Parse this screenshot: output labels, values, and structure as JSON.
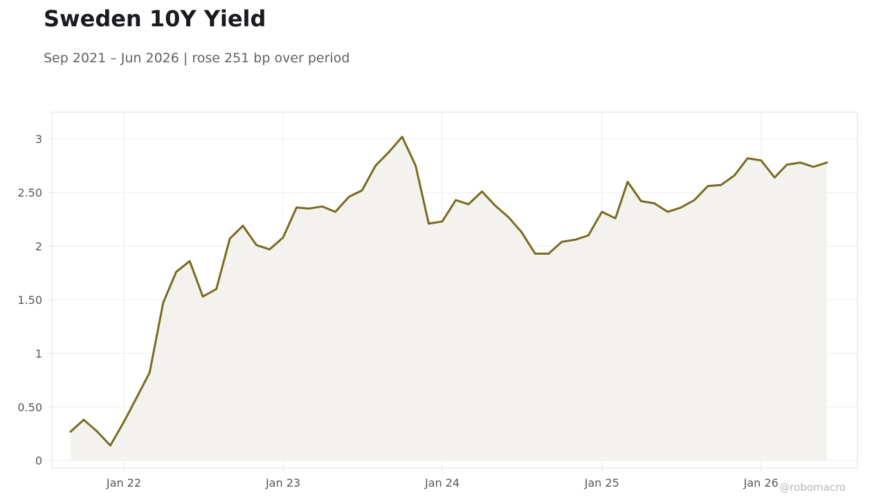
{
  "header": {
    "title": "Sweden 10Y Yield",
    "subtitle": "Sep 2021 – Jun 2026 | rose 251 bp over period"
  },
  "watermark": "@robomacro",
  "colors": {
    "line": "#7a6a1f",
    "area": "#f3f2ee",
    "grid": "#ebebeb",
    "frame": "#dcdcdc",
    "text": "#55565c"
  },
  "chart_data": {
    "type": "area",
    "title": "Sweden 10Y Yield",
    "subtitle": "Sep 2021 – Jun 2026 | rose 251 bp over period",
    "xlabel": "",
    "ylabel": "",
    "ylim": [
      -0.07,
      3.25
    ],
    "xlim": [
      "2021-07-20",
      "2026-08-10"
    ],
    "grid": true,
    "legend": "none",
    "y_ticks": [
      {
        "value": 0,
        "label": "0"
      },
      {
        "value": 0.5,
        "label": "0.50"
      },
      {
        "value": 1,
        "label": "1"
      },
      {
        "value": 1.5,
        "label": "1.50"
      },
      {
        "value": 2,
        "label": "2"
      },
      {
        "value": 2.5,
        "label": "2.50"
      },
      {
        "value": 3,
        "label": "3"
      }
    ],
    "x_ticks": [
      {
        "date": "2022-01-01",
        "label": "Jan 22"
      },
      {
        "date": "2023-01-01",
        "label": "Jan 23"
      },
      {
        "date": "2024-01-01",
        "label": "Jan 24"
      },
      {
        "date": "2025-01-01",
        "label": "Jan 25"
      },
      {
        "date": "2026-01-01",
        "label": "Jan 26"
      }
    ],
    "series": [
      {
        "x": [
          "2021-09-01",
          "2021-10-01",
          "2021-11-01",
          "2021-12-01",
          "2022-01-01",
          "2022-02-01",
          "2022-03-01",
          "2022-04-01",
          "2022-05-01",
          "2022-06-01",
          "2022-07-01",
          "2022-08-01",
          "2022-09-01",
          "2022-10-01",
          "2022-11-01",
          "2022-12-01",
          "2023-01-01",
          "2023-02-01",
          "2023-03-01",
          "2023-04-01",
          "2023-05-01",
          "2023-06-01",
          "2023-07-01",
          "2023-08-01",
          "2023-09-01",
          "2023-10-01",
          "2023-11-01",
          "2023-12-01",
          "2024-01-01",
          "2024-02-01",
          "2024-03-01",
          "2024-04-01",
          "2024-05-01",
          "2024-06-01",
          "2024-07-01",
          "2024-08-01",
          "2024-09-01",
          "2024-10-01",
          "2024-11-01",
          "2024-12-01",
          "2025-01-01",
          "2025-02-01",
          "2025-03-01",
          "2025-04-01",
          "2025-05-01",
          "2025-06-01",
          "2025-07-01",
          "2025-08-01",
          "2025-09-01",
          "2025-10-01",
          "2025-11-01",
          "2025-12-01",
          "2026-01-01",
          "2026-02-01",
          "2026-03-01",
          "2026-04-01",
          "2026-05-01",
          "2026-06-01"
        ],
        "values": [
          0.27,
          0.38,
          0.27,
          0.14,
          0.36,
          0.6,
          0.82,
          1.47,
          1.76,
          1.86,
          1.53,
          1.6,
          2.07,
          2.19,
          2.01,
          1.97,
          2.08,
          2.36,
          2.35,
          2.37,
          2.32,
          2.46,
          2.52,
          2.75,
          2.88,
          3.02,
          2.75,
          2.21,
          2.23,
          2.43,
          2.39,
          2.51,
          2.38,
          2.27,
          2.13,
          1.93,
          1.93,
          2.04,
          2.06,
          2.1,
          2.32,
          2.26,
          2.6,
          2.42,
          2.4,
          2.32,
          2.36,
          2.43,
          2.56,
          2.57,
          2.66,
          2.82,
          2.8,
          2.64,
          2.76,
          2.78,
          2.74,
          2.78
        ]
      }
    ]
  }
}
